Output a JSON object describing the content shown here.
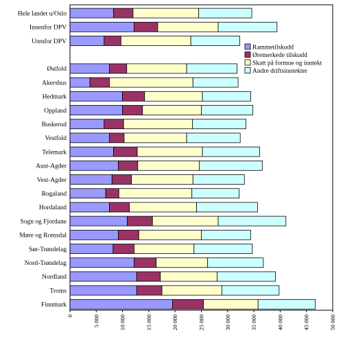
{
  "chart_data": {
    "type": "bar",
    "orientation": "horizontal",
    "stacked": true,
    "title": "",
    "xlabel": "",
    "ylabel": "",
    "xlim": [
      0,
      50000
    ],
    "x_ticks": [
      0,
      5000,
      10000,
      15000,
      20000,
      25000,
      30000,
      35000,
      40000,
      45000,
      50000
    ],
    "x_tick_labels": [
      "0",
      "5 000",
      "10 000",
      "15 000",
      "20 000",
      "25 000",
      "30 000",
      "35 000",
      "40 000",
      "45 000",
      "50 000"
    ],
    "grid": false,
    "legend_position": "right",
    "categories": [
      "Hele landet u/Oslo",
      "Innenfor DPV",
      "Utenfor DPV",
      "",
      "Østfold",
      "Akershus",
      "Hedmark",
      "Oppland",
      "Buskerud",
      "Vestfold",
      "Telemark",
      "Aust-Agder",
      "Vest-Agder",
      "Rogaland",
      "Hordaland",
      "Sogn og Fjordane",
      "Møre og Romsdal",
      "Sør-Trøndelag",
      "Nord-Trøndelag",
      "Nordland",
      "Troms",
      "Finnmark"
    ],
    "series": [
      {
        "name": "Rammetilskudd",
        "color": "#9999ff",
        "values": [
          8300,
          12200,
          6500,
          null,
          7500,
          3800,
          10000,
          10000,
          6500,
          7500,
          8300,
          9200,
          8000,
          6800,
          7500,
          10900,
          9200,
          8200,
          12200,
          12700,
          12700,
          19500
        ]
      },
      {
        "name": "Øremerkede tilskudd",
        "color": "#993366",
        "values": [
          3700,
          4500,
          3200,
          null,
          3300,
          3700,
          4200,
          3800,
          3700,
          2800,
          4500,
          3700,
          3700,
          2500,
          3800,
          4800,
          3900,
          4000,
          4200,
          4500,
          4800,
          5900
        ]
      },
      {
        "name": "Skatt på formue og inntekt",
        "color": "#ffffcc",
        "values": [
          12500,
          11500,
          13300,
          null,
          11400,
          15900,
          11000,
          11200,
          13100,
          11900,
          12400,
          11700,
          11700,
          13900,
          12800,
          12500,
          11900,
          11400,
          9800,
          10800,
          11400,
          10400
        ]
      },
      {
        "name": "Andre driftsinntekter",
        "color": "#ccffff",
        "values": [
          10100,
          11200,
          9300,
          null,
          9600,
          8600,
          9200,
          9800,
          10200,
          10200,
          10900,
          12000,
          9800,
          9000,
          11600,
          12900,
          9400,
          11100,
          10600,
          11100,
          10900,
          10900
        ]
      }
    ]
  }
}
